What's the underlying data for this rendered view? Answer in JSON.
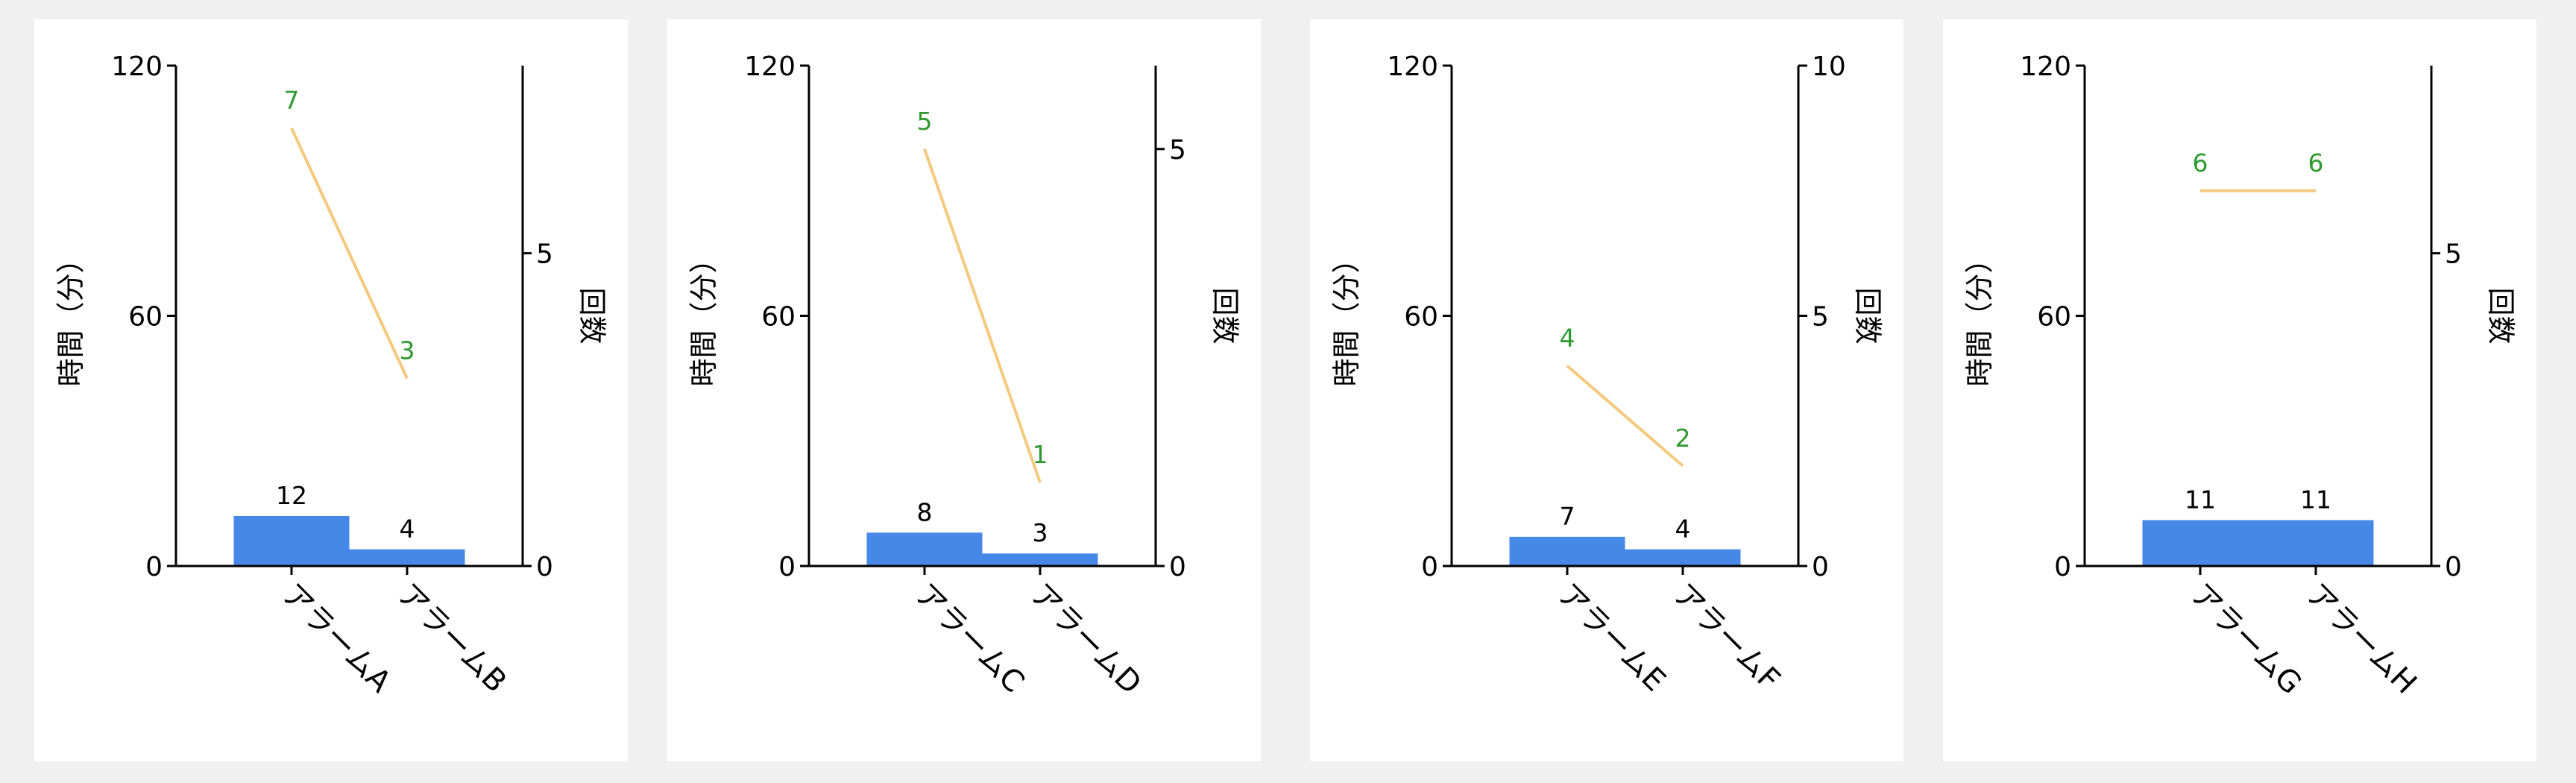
{
  "colors": {
    "bar": "#4588e8",
    "line": "#f5c97e",
    "line_label": "#2e9a2e",
    "background": "#f0f0f0",
    "panel": "#ffffff",
    "axis": "#000000"
  },
  "chart_data": [
    {
      "type": "bar",
      "categories": [
        "アラームA",
        "アラームB"
      ],
      "y_label": "時間（分）",
      "y2_label": "回数",
      "ylim": [
        0,
        120
      ],
      "y_ticks": [
        "0",
        "60",
        "120"
      ],
      "y2lim": [
        0,
        8
      ],
      "y2_ticks": [
        "0",
        "5"
      ],
      "bars": {
        "values": [
          12,
          4
        ],
        "labels": [
          "12",
          "4"
        ]
      },
      "line": {
        "values": [
          7,
          3
        ],
        "labels": [
          "7",
          "3"
        ]
      }
    },
    {
      "type": "bar",
      "categories": [
        "アラームC",
        "アラームD"
      ],
      "y_label": "時間（分）",
      "y2_label": "回数",
      "ylim": [
        0,
        120
      ],
      "y_ticks": [
        "0",
        "60",
        "120"
      ],
      "y2lim": [
        0,
        6
      ],
      "y2_ticks": [
        "0",
        "5"
      ],
      "bars": {
        "values": [
          8,
          3
        ],
        "labels": [
          "8",
          "3"
        ]
      },
      "line": {
        "values": [
          5,
          1
        ],
        "labels": [
          "5",
          "1"
        ]
      }
    },
    {
      "type": "bar",
      "categories": [
        "アラームE",
        "アラームF"
      ],
      "y_label": "時間（分）",
      "y2_label": "回数",
      "ylim": [
        0,
        120
      ],
      "y_ticks": [
        "0",
        "60",
        "120"
      ],
      "y2lim": [
        0,
        10
      ],
      "y2_ticks": [
        "0",
        "5",
        "10"
      ],
      "bars": {
        "values": [
          7,
          4
        ],
        "labels": [
          "7",
          "4"
        ]
      },
      "line": {
        "values": [
          4,
          2
        ],
        "labels": [
          "4",
          "2"
        ]
      }
    },
    {
      "type": "bar",
      "categories": [
        "アラームG",
        "アラームH"
      ],
      "y_label": "時間（分）",
      "y2_label": "回数",
      "ylim": [
        0,
        120
      ],
      "y_ticks": [
        "0",
        "60",
        "120"
      ],
      "y2lim": [
        0,
        8
      ],
      "y2_ticks": [
        "0",
        "5"
      ],
      "bars": {
        "values": [
          11,
          11
        ],
        "labels": [
          "11",
          "11"
        ]
      },
      "line": {
        "values": [
          6,
          6
        ],
        "labels": [
          "6",
          "6"
        ]
      }
    }
  ]
}
